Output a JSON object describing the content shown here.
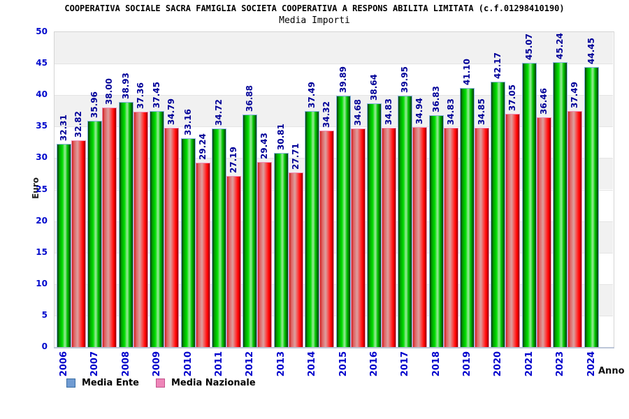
{
  "header": {
    "title": "COOPERATIVA SOCIALE SACRA FAMIGLIA SOCIETA COOPERATIVA A RESPONS ABILITA LIMITATA (c.f.01298410190)",
    "subtitle": "Media Importi"
  },
  "axes": {
    "y_label": "Euro",
    "x_label": "Anno"
  },
  "legend": {
    "items": [
      {
        "label": "Media Ente",
        "swatch_color": "#6f9bd2"
      },
      {
        "label": "Media Nazionale",
        "swatch_color": "#ee85b8"
      }
    ],
    "position": "bottom-left"
  },
  "chart_data": {
    "type": "bar",
    "title": "Media Importi",
    "categories": [
      "2006",
      "2007",
      "2008",
      "2009",
      "2010",
      "2011",
      "2012",
      "2013",
      "2014",
      "2015",
      "2016",
      "2017",
      "2018",
      "2019",
      "2020",
      "2021",
      "2023",
      "2024"
    ],
    "series": [
      {
        "name": "Media Ente",
        "bar_color": "#00cc00",
        "border_color": "#8ab4e6",
        "values": [
          32.31,
          35.96,
          38.93,
          37.45,
          33.16,
          34.72,
          36.88,
          30.81,
          37.49,
          39.89,
          38.64,
          39.95,
          36.83,
          41.1,
          42.17,
          45.07,
          45.24,
          44.45
        ]
      },
      {
        "name": "Media Nazionale",
        "bar_color": "#ff2020",
        "border_color": "#f08cb4",
        "values": [
          32.82,
          38.0,
          37.36,
          34.79,
          29.24,
          27.19,
          29.43,
          27.71,
          34.32,
          34.68,
          34.83,
          34.94,
          34.83,
          34.85,
          37.05,
          36.46,
          37.49,
          null
        ]
      }
    ],
    "xlabel": "Anno",
    "ylabel": "Euro",
    "ylim": [
      0,
      50
    ],
    "y_ticks": [
      0,
      5,
      10,
      15,
      20,
      25,
      30,
      35,
      40,
      45,
      50
    ],
    "value_label_format": "two decimals, rotated 90deg above each bar",
    "value_label_color": "#000099",
    "tick_label_color": "#0000cc",
    "grid": "horizontal lines every 5 with alternating gray/white bands",
    "legend_position": "bottom-left",
    "note_missing_category": "2022 absent between 2021 and 2023; 2024 has no Media Nazionale bar"
  }
}
